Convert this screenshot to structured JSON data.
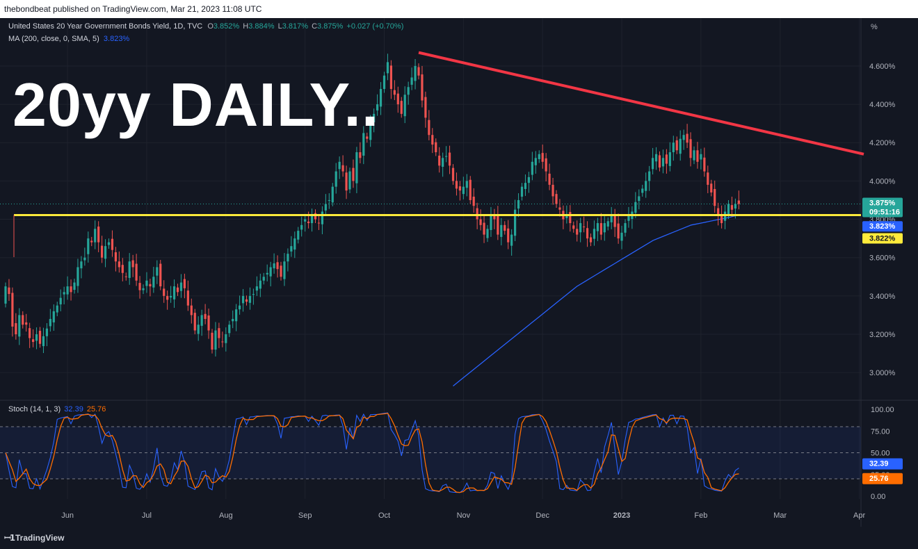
{
  "header": {
    "text": "thebondbeat published on TradingView.com, Mar 21, 2023 11:08 UTC"
  },
  "overlay_title": "20yy DAILY..",
  "legend": {
    "symbol": "United States 20 Year Government Bonds Yield, 1D, TVC",
    "o_label": "O",
    "o_value": "3.852%",
    "h_label": "H",
    "h_value": "3.884%",
    "l_label": "L",
    "l_value": "3.817%",
    "c_label": "C",
    "c_value": "3.875%",
    "change": "+0.027 (+0.70%)",
    "ma_label": "MA (200, close, 0, SMA, 5)",
    "ma_value": "3.823%"
  },
  "stoch_legend": {
    "label": "Stoch (14, 1, 3)",
    "k_value": "32.39",
    "d_value": "25.76"
  },
  "price_badges": {
    "last": "3.875%",
    "countdown": "09:51:16",
    "ma": "3.823%",
    "line": "3.822%"
  },
  "stoch_badges": {
    "k": "32.39",
    "d": "25.76"
  },
  "branding": "TradingView",
  "colors": {
    "up": "#26a69a",
    "down": "#ef5350",
    "ma": "#2962ff",
    "trendline": "#f23645",
    "support": "#ffeb3b",
    "stoch_k": "#2962ff",
    "stoch_d": "#ff6d00",
    "background": "#131722"
  },
  "chart_data": {
    "type": "candlestick",
    "price_axis": {
      "unit": "%",
      "ticks": [
        "4.600%",
        "4.400%",
        "4.200%",
        "4.000%",
        "3.800%",
        "3.600%",
        "3.400%",
        "3.200%",
        "3.000%"
      ],
      "tick_values": [
        4.6,
        4.4,
        4.2,
        4.0,
        3.8,
        3.6,
        3.4,
        3.2,
        3.0
      ],
      "range": [
        2.87,
        4.85
      ]
    },
    "time_axis": {
      "labels": [
        "Jun",
        "Jul",
        "Aug",
        "Sep",
        "Oct",
        "Nov",
        "Dec",
        "2023",
        "Feb",
        "Mar",
        "Apr"
      ],
      "label_index": [
        18,
        41,
        64,
        87,
        110,
        133,
        156,
        179,
        202,
        225,
        248
      ]
    },
    "closes": [
      3.45,
      3.41,
      3.24,
      3.2,
      3.3,
      3.25,
      3.25,
      3.18,
      3.16,
      3.2,
      3.15,
      3.19,
      3.23,
      3.28,
      3.32,
      3.35,
      3.39,
      3.42,
      3.45,
      3.42,
      3.47,
      3.55,
      3.58,
      3.6,
      3.7,
      3.68,
      3.75,
      3.68,
      3.6,
      3.66,
      3.68,
      3.64,
      3.58,
      3.55,
      3.52,
      3.5,
      3.58,
      3.55,
      3.48,
      3.43,
      3.44,
      3.48,
      3.45,
      3.5,
      3.55,
      3.45,
      3.4,
      3.38,
      3.4,
      3.45,
      3.42,
      3.47,
      3.44,
      3.35,
      3.3,
      3.22,
      3.25,
      3.3,
      3.28,
      3.22,
      3.12,
      3.22,
      3.18,
      3.16,
      3.2,
      3.25,
      3.28,
      3.33,
      3.35,
      3.4,
      3.37,
      3.4,
      3.41,
      3.45,
      3.48,
      3.5,
      3.52,
      3.55,
      3.57,
      3.54,
      3.5,
      3.58,
      3.62,
      3.66,
      3.7,
      3.74,
      3.77,
      3.8,
      3.78,
      3.82,
      3.8,
      3.78,
      3.84,
      3.88,
      3.9,
      3.97,
      4.05,
      4.1,
      4.05,
      3.95,
      4.05,
      4.0,
      4.15,
      4.12,
      4.25,
      4.22,
      4.3,
      4.35,
      4.4,
      4.48,
      4.55,
      4.62,
      4.48,
      4.45,
      4.4,
      4.35,
      4.45,
      4.49,
      4.54,
      4.6,
      4.55,
      4.42,
      4.33,
      4.24,
      4.19,
      4.15,
      4.08,
      4.12,
      4.13,
      4.08,
      4.0,
      3.96,
      3.95,
      3.97,
      4.0,
      3.9,
      3.87,
      3.8,
      3.77,
      3.72,
      3.75,
      3.82,
      3.8,
      3.72,
      3.77,
      3.74,
      3.68,
      3.72,
      3.85,
      3.9,
      3.97,
      3.99,
      4.02,
      4.1,
      4.12,
      4.14,
      4.1,
      4.05,
      3.98,
      3.92,
      3.88,
      3.85,
      3.8,
      3.82,
      3.78,
      3.75,
      3.72,
      3.78,
      3.76,
      3.7,
      3.68,
      3.75,
      3.78,
      3.72,
      3.78,
      3.79,
      3.82,
      3.76,
      3.7,
      3.73,
      3.78,
      3.82,
      3.84,
      3.89,
      3.92,
      3.96,
      4.0,
      4.05,
      4.12,
      4.14,
      4.07,
      4.12,
      4.09,
      4.15,
      4.2,
      4.16,
      4.22,
      4.24,
      4.2,
      4.12,
      4.16,
      4.1,
      4.14,
      4.05,
      3.98,
      3.94,
      3.87,
      3.82,
      3.78,
      3.84,
      3.88,
      3.85,
      3.88,
      3.88
    ],
    "ma200": {
      "start_index": 130,
      "values": [
        2.93,
        2.97,
        3.01,
        3.05,
        3.09,
        3.13,
        3.17,
        3.21,
        3.25,
        3.29,
        3.33,
        3.37,
        3.41,
        3.45,
        3.48,
        3.51,
        3.54,
        3.57,
        3.6,
        3.63,
        3.66,
        3.69,
        3.71,
        3.73,
        3.75,
        3.77,
        3.78,
        3.79,
        3.8,
        3.81,
        3.823
      ]
    },
    "trendline": {
      "from": {
        "index": 120,
        "value": 4.67
      },
      "to": {
        "index": 262,
        "value": 4.14
      }
    },
    "support": {
      "value": 3.822,
      "from_index": 0
    },
    "stoch": {
      "axis_ticks": [
        "100.00",
        "75.00",
        "50.00",
        "25.00",
        "0.00"
      ],
      "tick_values": [
        100,
        75,
        50,
        25,
        0
      ],
      "bands": [
        80,
        50,
        20
      ],
      "k_last": 32.39,
      "d_last": 25.76
    }
  }
}
